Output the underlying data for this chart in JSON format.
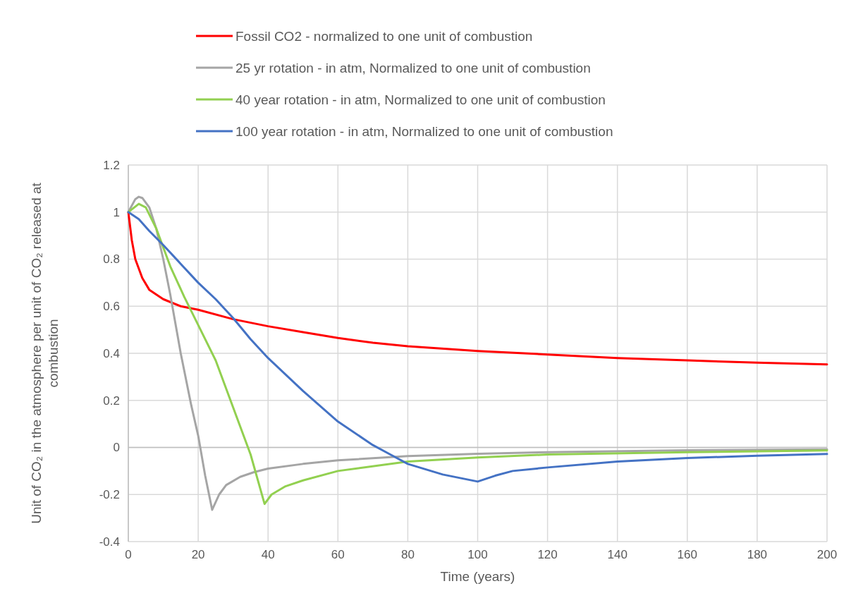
{
  "chart_data": {
    "type": "line",
    "xlabel": "Time (years)",
    "ylabel": "Unit of CO₂ in the atmosphere per unit of CO₂ released at combustion",
    "xlim": [
      0,
      200
    ],
    "xticks": [
      0,
      20,
      40,
      60,
      80,
      100,
      120,
      140,
      160,
      180,
      200
    ],
    "ylim": [
      -0.4,
      1.2
    ],
    "yticks": [
      -0.4,
      -0.2,
      0,
      0.2,
      0.4,
      0.6,
      0.8,
      1,
      1.2
    ],
    "grid": true,
    "legend": "top",
    "marker": "none",
    "line_style": "solid",
    "series": [
      {
        "name": "Fossil CO2 - normalized to one unit of combustion",
        "color": "#ff0000",
        "x": [
          0,
          1,
          2,
          4,
          6,
          10,
          15,
          20,
          30,
          40,
          50,
          60,
          70,
          80,
          100,
          120,
          140,
          160,
          180,
          200
        ],
        "values": [
          1,
          0.88,
          0.8,
          0.72,
          0.67,
          0.63,
          0.6,
          0.585,
          0.545,
          0.515,
          0.49,
          0.465,
          0.445,
          0.43,
          0.41,
          0.395,
          0.38,
          0.37,
          0.36,
          0.353
        ]
      },
      {
        "name": "25 yr rotation - in atm, Normalized to one unit of combustion",
        "color": "#a5a5a5",
        "x": [
          0,
          2,
          3,
          4,
          6,
          8,
          10,
          12,
          15,
          18,
          20,
          22,
          24,
          26,
          28,
          32,
          36,
          40,
          50,
          60,
          80,
          100,
          120,
          160,
          200
        ],
        "values": [
          1,
          1.055,
          1.065,
          1.06,
          1.02,
          0.93,
          0.8,
          0.65,
          0.4,
          0.18,
          0.05,
          -0.12,
          -0.265,
          -0.2,
          -0.16,
          -0.125,
          -0.105,
          -0.09,
          -0.07,
          -0.055,
          -0.037,
          -0.027,
          -0.02,
          -0.012,
          -0.008
        ]
      },
      {
        "name": "40 year rotation - in atm, Normalized to one unit of combustion",
        "color": "#92d050",
        "x": [
          0,
          3,
          5,
          8,
          12,
          16,
          20,
          25,
          30,
          35,
          39,
          41,
          45,
          50,
          60,
          80,
          100,
          120,
          160,
          200
        ],
        "values": [
          1,
          1.035,
          1.02,
          0.93,
          0.77,
          0.64,
          0.52,
          0.37,
          0.17,
          -0.03,
          -0.24,
          -0.2,
          -0.165,
          -0.14,
          -0.1,
          -0.06,
          -0.043,
          -0.03,
          -0.02,
          -0.013
        ]
      },
      {
        "name": "100 year rotation - in atm, Normalized to one unit of combustion",
        "color": "#4472c4",
        "x": [
          0,
          3,
          6,
          10,
          15,
          20,
          25,
          30,
          35,
          40,
          50,
          60,
          70,
          75,
          80,
          90,
          100,
          105,
          110,
          120,
          140,
          160,
          180,
          200
        ],
        "values": [
          1,
          0.97,
          0.92,
          0.86,
          0.78,
          0.7,
          0.63,
          0.55,
          0.46,
          0.38,
          0.24,
          0.11,
          0.01,
          -0.03,
          -0.07,
          -0.115,
          -0.145,
          -0.12,
          -0.1,
          -0.085,
          -0.06,
          -0.045,
          -0.035,
          -0.028
        ]
      }
    ]
  }
}
